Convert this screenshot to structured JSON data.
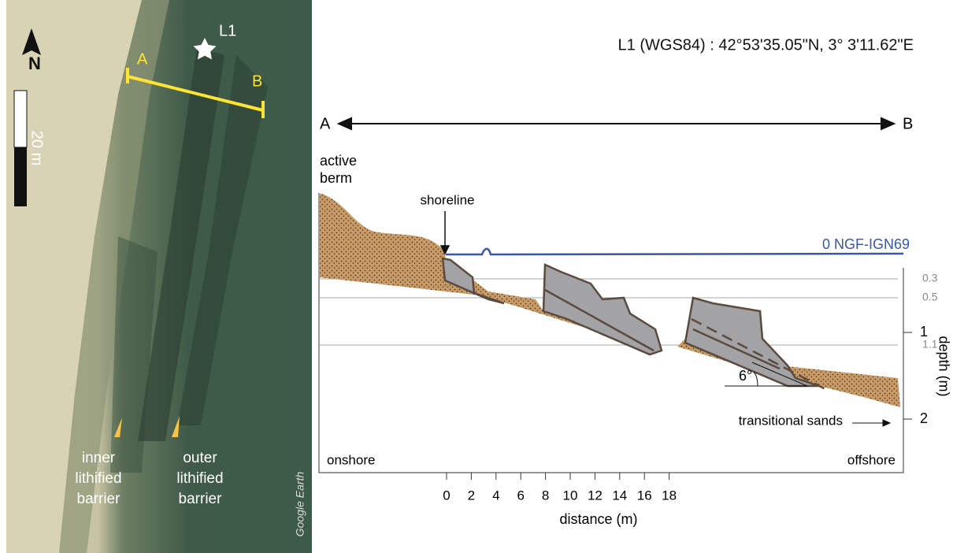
{
  "map": {
    "north": "N",
    "point": "L1",
    "end_a": "A",
    "end_b": "B",
    "scale": "20 m",
    "inner_label": [
      "inner",
      "lithified",
      "barrier"
    ],
    "outer_label": [
      "outer",
      "lithified",
      "barrier"
    ],
    "credit": "Google Earth"
  },
  "section": {
    "coordinates": "L1 (WGS84) : 42°53'35.05\"N,  3° 3'11.62\"E",
    "end_a": "A",
    "end_b": "B",
    "berm": [
      "active",
      "berm"
    ],
    "shoreline": "shoreline",
    "datum": "0 NGF-IGN69",
    "angle": "6°",
    "transitional": "transitional sands",
    "onshore": "onshore",
    "offshore": "offshore",
    "x_label": "distance (m)",
    "y_label": "depth (m)",
    "x_ticks": [
      0,
      2,
      4,
      6,
      8,
      10,
      12,
      14,
      16,
      18
    ],
    "minor_depths": [
      0.3,
      0.5,
      1.1
    ],
    "major_depths": [
      1,
      2
    ]
  }
}
